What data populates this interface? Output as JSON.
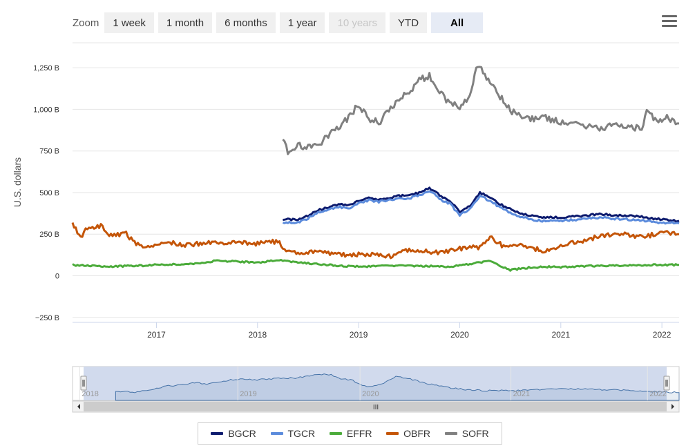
{
  "zoom": {
    "label": "Zoom",
    "buttons": [
      {
        "label": "1 week",
        "state": "normal"
      },
      {
        "label": "1 month",
        "state": "normal"
      },
      {
        "label": "6 months",
        "state": "normal"
      },
      {
        "label": "1 year",
        "state": "normal"
      },
      {
        "label": "10 years",
        "state": "disabled"
      },
      {
        "label": "YTD",
        "state": "normal"
      },
      {
        "label": "All",
        "state": "active"
      }
    ]
  },
  "menu": {
    "icon": "hamburger-menu-icon"
  },
  "navigator": {
    "tick_labels": [
      "2018",
      "2019",
      "2020",
      "2021",
      "2022"
    ],
    "scroll_grip": "III",
    "fill_color": "#ccd6eb",
    "line_color": "#4572a7"
  },
  "chart_data": {
    "type": "line",
    "ylabel": "U.S. dollars",
    "yticks": [
      "−250 B",
      "0",
      "250 B",
      "500 B",
      "750 B",
      "1,000 B",
      "1,250 B"
    ],
    "ytick_values": [
      -250,
      0,
      250,
      500,
      750,
      1000,
      1250
    ],
    "ylim": [
      -280,
      1400
    ],
    "xlim": [
      2016.17,
      2022.17
    ],
    "xticks": [
      "2017",
      "2018",
      "2019",
      "2020",
      "2021",
      "2022"
    ],
    "xtick_values": [
      2017,
      2018,
      2019,
      2020,
      2021,
      2022
    ],
    "unit": "billions of U.S. dollars",
    "legend_position": "bottom-center",
    "series": [
      {
        "name": "BGCR",
        "color": "#0d1b6e",
        "points": [
          [
            2018.25,
            340
          ],
          [
            2018.4,
            335
          ],
          [
            2018.5,
            360
          ],
          [
            2018.6,
            395
          ],
          [
            2018.7,
            410
          ],
          [
            2018.8,
            430
          ],
          [
            2018.9,
            420
          ],
          [
            2019.0,
            450
          ],
          [
            2019.1,
            470
          ],
          [
            2019.2,
            460
          ],
          [
            2019.3,
            470
          ],
          [
            2019.4,
            480
          ],
          [
            2019.5,
            480
          ],
          [
            2019.6,
            500
          ],
          [
            2019.7,
            525
          ],
          [
            2019.75,
            515
          ],
          [
            2019.8,
            480
          ],
          [
            2019.9,
            455
          ],
          [
            2020.0,
            385
          ],
          [
            2020.1,
            420
          ],
          [
            2020.2,
            500
          ],
          [
            2020.3,
            470
          ],
          [
            2020.4,
            430
          ],
          [
            2020.5,
            400
          ],
          [
            2020.6,
            375
          ],
          [
            2020.7,
            360
          ],
          [
            2020.8,
            350
          ],
          [
            2021.0,
            350
          ],
          [
            2021.2,
            360
          ],
          [
            2021.4,
            370
          ],
          [
            2021.5,
            365
          ],
          [
            2021.6,
            360
          ],
          [
            2021.8,
            355
          ],
          [
            2021.9,
            345
          ],
          [
            2022.0,
            340
          ],
          [
            2022.17,
            330
          ]
        ]
      },
      {
        "name": "TGCR",
        "color": "#5b8bdc",
        "points": [
          [
            2018.25,
            320
          ],
          [
            2018.4,
            320
          ],
          [
            2018.5,
            345
          ],
          [
            2018.6,
            380
          ],
          [
            2018.7,
            395
          ],
          [
            2018.8,
            415
          ],
          [
            2018.9,
            405
          ],
          [
            2019.0,
            435
          ],
          [
            2019.1,
            455
          ],
          [
            2019.2,
            445
          ],
          [
            2019.3,
            455
          ],
          [
            2019.4,
            465
          ],
          [
            2019.5,
            465
          ],
          [
            2019.6,
            485
          ],
          [
            2019.7,
            505
          ],
          [
            2019.75,
            495
          ],
          [
            2019.8,
            460
          ],
          [
            2019.9,
            435
          ],
          [
            2020.0,
            365
          ],
          [
            2020.1,
            400
          ],
          [
            2020.2,
            480
          ],
          [
            2020.3,
            450
          ],
          [
            2020.4,
            410
          ],
          [
            2020.5,
            380
          ],
          [
            2020.6,
            355
          ],
          [
            2020.7,
            340
          ],
          [
            2020.8,
            330
          ],
          [
            2021.0,
            330
          ],
          [
            2021.2,
            340
          ],
          [
            2021.4,
            350
          ],
          [
            2021.5,
            345
          ],
          [
            2021.6,
            340
          ],
          [
            2021.8,
            335
          ],
          [
            2021.9,
            325
          ],
          [
            2022.0,
            320
          ],
          [
            2022.17,
            315
          ]
        ]
      },
      {
        "name": "EFFR",
        "color": "#4bab3a",
        "points": [
          [
            2016.17,
            65
          ],
          [
            2016.5,
            55
          ],
          [
            2016.8,
            60
          ],
          [
            2017.0,
            65
          ],
          [
            2017.3,
            70
          ],
          [
            2017.6,
            90
          ],
          [
            2017.8,
            85
          ],
          [
            2018.0,
            80
          ],
          [
            2018.2,
            95
          ],
          [
            2018.4,
            80
          ],
          [
            2018.6,
            70
          ],
          [
            2018.8,
            60
          ],
          [
            2019.0,
            55
          ],
          [
            2019.3,
            60
          ],
          [
            2019.6,
            60
          ],
          [
            2019.9,
            55
          ],
          [
            2020.0,
            60
          ],
          [
            2020.3,
            90
          ],
          [
            2020.4,
            60
          ],
          [
            2020.5,
            35
          ],
          [
            2020.7,
            50
          ],
          [
            2020.9,
            55
          ],
          [
            2021.0,
            50
          ],
          [
            2021.3,
            60
          ],
          [
            2021.6,
            60
          ],
          [
            2021.9,
            65
          ],
          [
            2022.17,
            65
          ]
        ]
      },
      {
        "name": "OBFR",
        "color": "#c45508",
        "points": [
          [
            2016.17,
            320
          ],
          [
            2016.25,
            230
          ],
          [
            2016.3,
            280
          ],
          [
            2016.45,
            300
          ],
          [
            2016.55,
            240
          ],
          [
            2016.7,
            255
          ],
          [
            2016.8,
            185
          ],
          [
            2017.0,
            180
          ],
          [
            2017.1,
            205
          ],
          [
            2017.3,
            185
          ],
          [
            2017.6,
            205
          ],
          [
            2017.8,
            195
          ],
          [
            2018.0,
            195
          ],
          [
            2018.2,
            205
          ],
          [
            2018.3,
            140
          ],
          [
            2018.5,
            145
          ],
          [
            2018.7,
            135
          ],
          [
            2018.9,
            125
          ],
          [
            2019.0,
            130
          ],
          [
            2019.2,
            130
          ],
          [
            2019.3,
            115
          ],
          [
            2019.45,
            160
          ],
          [
            2019.6,
            150
          ],
          [
            2019.8,
            140
          ],
          [
            2019.9,
            150
          ],
          [
            2020.0,
            165
          ],
          [
            2020.2,
            170
          ],
          [
            2020.3,
            230
          ],
          [
            2020.45,
            170
          ],
          [
            2020.6,
            180
          ],
          [
            2020.8,
            155
          ],
          [
            2020.9,
            150
          ],
          [
            2021.0,
            190
          ],
          [
            2021.2,
            200
          ],
          [
            2021.4,
            245
          ],
          [
            2021.6,
            250
          ],
          [
            2021.8,
            230
          ],
          [
            2022.0,
            260
          ],
          [
            2022.17,
            250
          ]
        ]
      },
      {
        "name": "SOFR",
        "color": "#808080",
        "points": [
          [
            2018.25,
            835
          ],
          [
            2018.3,
            740
          ],
          [
            2018.4,
            790
          ],
          [
            2018.5,
            770
          ],
          [
            2018.6,
            780
          ],
          [
            2018.7,
            840
          ],
          [
            2018.8,
            890
          ],
          [
            2018.9,
            950
          ],
          [
            2019.0,
            1030
          ],
          [
            2019.1,
            940
          ],
          [
            2019.2,
            920
          ],
          [
            2019.3,
            990
          ],
          [
            2019.4,
            1060
          ],
          [
            2019.5,
            1100
          ],
          [
            2019.6,
            1180
          ],
          [
            2019.7,
            1200
          ],
          [
            2019.8,
            1100
          ],
          [
            2019.9,
            1040
          ],
          [
            2020.0,
            1020
          ],
          [
            2020.1,
            1080
          ],
          [
            2020.18,
            1270
          ],
          [
            2020.3,
            1170
          ],
          [
            2020.4,
            1080
          ],
          [
            2020.5,
            990
          ],
          [
            2020.6,
            960
          ],
          [
            2020.7,
            940
          ],
          [
            2020.8,
            960
          ],
          [
            2021.0,
            920
          ],
          [
            2021.2,
            905
          ],
          [
            2021.4,
            890
          ],
          [
            2021.6,
            910
          ],
          [
            2021.8,
            880
          ],
          [
            2021.85,
            1000
          ],
          [
            2021.95,
            920
          ],
          [
            2022.05,
            950
          ],
          [
            2022.17,
            915
          ]
        ]
      }
    ]
  }
}
